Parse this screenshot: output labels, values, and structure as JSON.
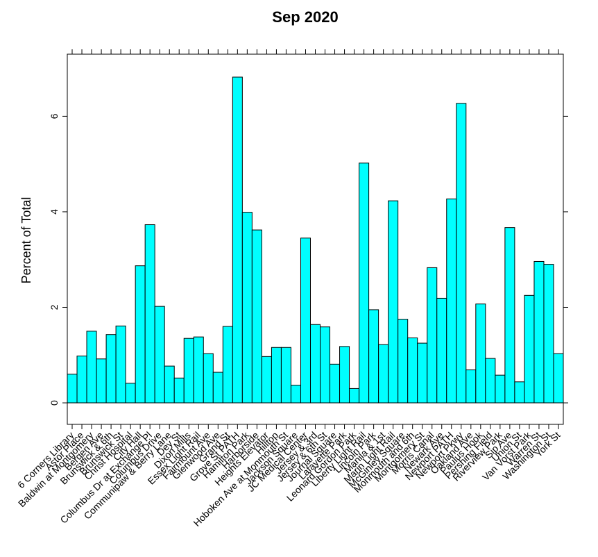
{
  "chart_data": {
    "type": "bar",
    "title": "Sep 2020",
    "xlabel": "",
    "ylabel": "Percent of Total",
    "ylim": [
      -0.45,
      7.3
    ],
    "yticks": [
      0,
      2,
      4,
      6
    ],
    "grid": false,
    "bar_color": "#00ffff",
    "categories": [
      "6 Corners Library",
      "Astor Place",
      "Baldwin at Montgomery",
      "Bergen Ave",
      "Brunswick & 6th",
      "Brunswick St",
      "Christ Hospital",
      "City Hall",
      "Columbus Dr at Exchange Pl",
      "Columbus Drive",
      "Communipaw & Berry Lane",
      "Dey St",
      "Dixon Mills",
      "Essex Light Rail",
      "Fairmount Ave",
      "Glenwood Ave",
      "Grand St",
      "Grove St PATH",
      "Hamilton Park",
      "Harborside",
      "Heights Elevator",
      "Hilltop",
      "Hoboken Ave at Monmouth St",
      "Jackson Square",
      "JC Medical Center",
      "Jersey & 3rd",
      "Jersey & 6th St",
      "Journal Square",
      "Lafayette Park",
      "Leonard Gordon Park",
      "Liberty Light Rail",
      "Lincoln Park",
      "Manila & 1st",
      "Marin Light Rail",
      "McGinley Square",
      "Monmouth and 6th",
      "Montgomery St",
      "Morris Canal",
      "Newark Ave",
      "Newport PATH",
      "Newport Pkwy",
      "Oakland Ave",
      "Paulus Hook",
      "Pershing Field",
      "Riverview Park",
      "Sip Ave",
      "Union St",
      "Van Vorst Park",
      "Warren St",
      "Washington St",
      "York St"
    ],
    "values": [
      0.6,
      0.98,
      1.5,
      0.92,
      1.43,
      1.61,
      0.41,
      2.87,
      3.73,
      2.02,
      0.77,
      0.52,
      1.35,
      1.38,
      1.03,
      0.64,
      1.6,
      6.82,
      3.99,
      3.62,
      0.97,
      1.16,
      1.16,
      0.37,
      3.45,
      1.64,
      1.59,
      0.81,
      1.18,
      0.3,
      5.02,
      1.95,
      1.22,
      4.23,
      1.75,
      1.36,
      1.25,
      2.83,
      2.19,
      4.27,
      6.27,
      0.69,
      2.07,
      0.93,
      0.58,
      3.67,
      0.44,
      2.25,
      2.96,
      2.9,
      1.03
    ]
  }
}
